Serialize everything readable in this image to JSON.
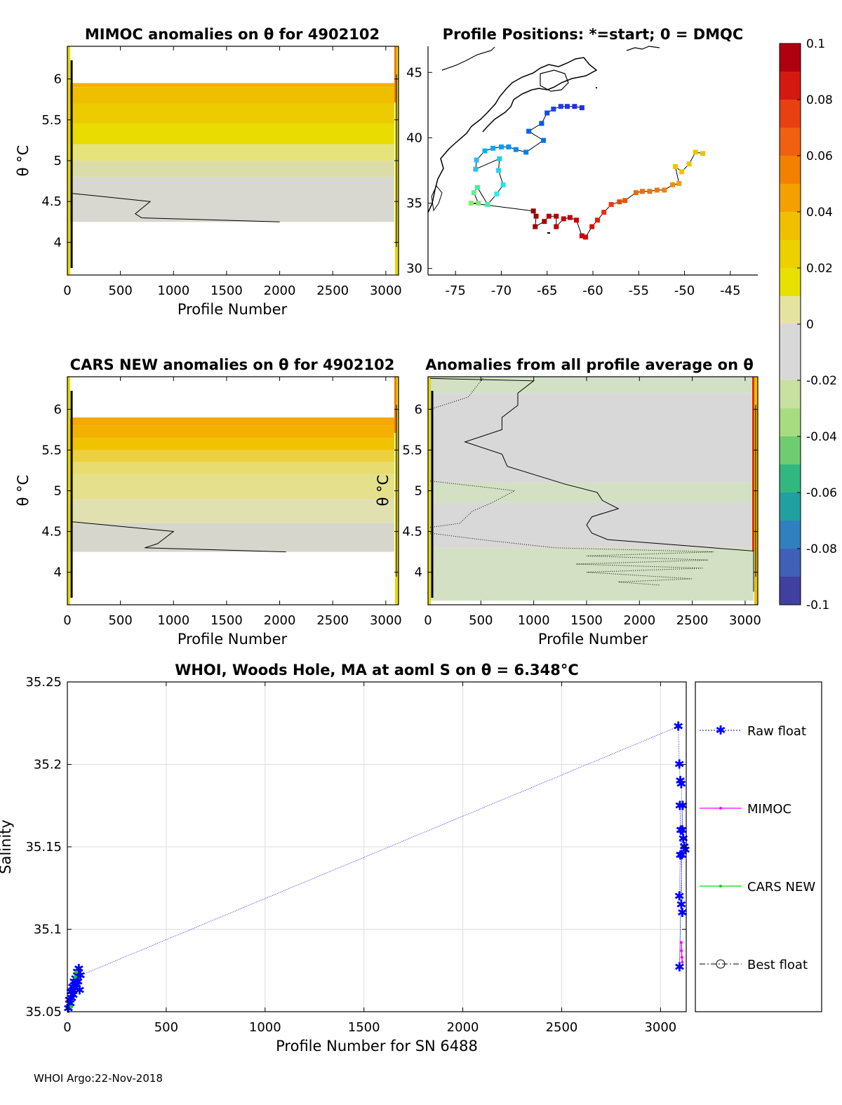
{
  "chart_data": [
    {
      "id": "mimoc",
      "type": "heatmap",
      "title": "MIMOC anomalies on θ  for 4902102",
      "xlabel": "Profile Number",
      "ylabel": "θ °C",
      "xlim": [
        0,
        3120
      ],
      "ylim": [
        3.6,
        6.4
      ],
      "xticks": [
        0,
        500,
        1000,
        1500,
        2000,
        2500,
        3000
      ],
      "yticks": [
        4,
        4.5,
        5,
        5.5,
        6
      ],
      "bands": [
        {
          "from": 5.9,
          "to": 5.95,
          "color": "#efb400"
        },
        {
          "from": 5.7,
          "to": 5.9,
          "color": "#edbf00"
        },
        {
          "from": 5.45,
          "to": 5.7,
          "color": "#eccb00"
        },
        {
          "from": 5.2,
          "to": 5.45,
          "color": "#e8dc00"
        },
        {
          "from": 5.0,
          "to": 5.2,
          "color": "#e6e37a"
        },
        {
          "from": 4.8,
          "to": 5.0,
          "color": "#dcdca8"
        },
        {
          "from": 4.25,
          "to": 4.8,
          "color": "#d8d8d0"
        }
      ],
      "contour": [
        [
          40,
          4.6
        ],
        [
          780,
          4.5
        ],
        [
          640,
          4.35
        ],
        [
          700,
          4.3
        ],
        [
          2000,
          4.25
        ]
      ]
    },
    {
      "id": "positions",
      "type": "scatter",
      "title": "Profile Positions: *=start; 0 = DMQC",
      "xlim": [
        -78,
        -42
      ],
      "ylim": [
        29.5,
        47
      ],
      "xticks": [
        -75,
        -70,
        -65,
        -60,
        -55,
        -50,
        -45
      ],
      "yticks": [
        30,
        35,
        40,
        45
      ],
      "track": [
        {
          "lon": -48.0,
          "lat": 38.8,
          "color": "#eac600"
        },
        {
          "lon": -48.8,
          "lat": 38.9,
          "color": "#eac600"
        },
        {
          "lon": -49.5,
          "lat": 38.0,
          "color": "#eac600"
        },
        {
          "lon": -50.3,
          "lat": 37.4,
          "color": "#f2c100"
        },
        {
          "lon": -51.0,
          "lat": 37.8,
          "color": "#f2c100"
        },
        {
          "lon": -50.6,
          "lat": 36.5,
          "color": "#f2a000"
        },
        {
          "lon": -51.3,
          "lat": 36.4,
          "color": "#f08f00"
        },
        {
          "lon": -52.2,
          "lat": 36.0,
          "color": "#f08000"
        },
        {
          "lon": -53.0,
          "lat": 36.0,
          "color": "#ee7800"
        },
        {
          "lon": -53.8,
          "lat": 35.9,
          "color": "#ee7200"
        },
        {
          "lon": -54.6,
          "lat": 35.9,
          "color": "#ee6c00"
        },
        {
          "lon": -55.3,
          "lat": 35.8,
          "color": "#ee6800"
        },
        {
          "lon": -56.5,
          "lat": 35.2,
          "color": "#ec5200"
        },
        {
          "lon": -57.1,
          "lat": 35.1,
          "color": "#ec4800"
        },
        {
          "lon": -58.0,
          "lat": 34.9,
          "color": "#ea3c00"
        },
        {
          "lon": -58.8,
          "lat": 34.3,
          "color": "#e83000"
        },
        {
          "lon": -59.5,
          "lat": 33.7,
          "color": "#e62000"
        },
        {
          "lon": -60.1,
          "lat": 33.2,
          "color": "#d81000"
        },
        {
          "lon": -60.8,
          "lat": 32.4,
          "color": "#d40800"
        },
        {
          "lon": -61.2,
          "lat": 32.5,
          "color": "#cc0000"
        },
        {
          "lon": -61.8,
          "lat": 33.7,
          "color": "#c80000"
        },
        {
          "lon": -62.5,
          "lat": 33.9,
          "color": "#c00000"
        },
        {
          "lon": -63.2,
          "lat": 33.8,
          "color": "#c00000"
        },
        {
          "lon": -64.0,
          "lat": 33.2,
          "color": "#b80000"
        },
        {
          "lon": -64.0,
          "lat": 34.0,
          "color": "#b40000"
        },
        {
          "lon": -64.8,
          "lat": 34.0,
          "color": "#b40000"
        },
        {
          "lon": -65.3,
          "lat": 33.6,
          "color": "#a80000"
        },
        {
          "lon": -66.3,
          "lat": 33.2,
          "color": "#a00000"
        },
        {
          "lon": -66.2,
          "lat": 34.0,
          "color": "#a00000"
        },
        {
          "lon": -66.5,
          "lat": 34.4,
          "color": "#900000"
        },
        {
          "lon": -73.3,
          "lat": 35.0,
          "color": "#88ee66"
        },
        {
          "lon": -72.5,
          "lat": 35.0,
          "color": "#78e878"
        },
        {
          "lon": -73.0,
          "lat": 35.8,
          "color": "#66ee88"
        },
        {
          "lon": -72.6,
          "lat": 36.2,
          "color": "#44ee99"
        },
        {
          "lon": -71.5,
          "lat": 34.9,
          "color": "#44eeaa"
        },
        {
          "lon": -70.5,
          "lat": 35.7,
          "color": "#22eeee"
        },
        {
          "lon": -69.8,
          "lat": 36.4,
          "color": "#22e0ee"
        },
        {
          "lon": -70.3,
          "lat": 37.5,
          "color": "#22d6ee"
        },
        {
          "lon": -70.2,
          "lat": 38.4,
          "color": "#22ccee"
        },
        {
          "lon": -72.8,
          "lat": 37.6,
          "color": "#22c4f0"
        },
        {
          "lon": -72.7,
          "lat": 38.3,
          "color": "#22bef2"
        },
        {
          "lon": -71.8,
          "lat": 39.0,
          "color": "#00b4f4"
        },
        {
          "lon": -70.9,
          "lat": 39.2,
          "color": "#00aaf4"
        },
        {
          "lon": -70.0,
          "lat": 39.3,
          "color": "#00a0f4"
        },
        {
          "lon": -69.2,
          "lat": 39.3,
          "color": "#0096f4"
        },
        {
          "lon": -68.4,
          "lat": 39.1,
          "color": "#008cf2"
        },
        {
          "lon": -67.3,
          "lat": 38.9,
          "color": "#0080f0"
        },
        {
          "lon": -65.4,
          "lat": 39.8,
          "color": "#0070ee"
        },
        {
          "lon": -67.0,
          "lat": 40.5,
          "color": "#0064ec"
        },
        {
          "lon": -65.6,
          "lat": 41.1,
          "color": "#0058ea"
        },
        {
          "lon": -65.0,
          "lat": 41.9,
          "color": "#104ce8"
        },
        {
          "lon": -64.3,
          "lat": 42.2,
          "color": "#1a44e6"
        },
        {
          "lon": -63.5,
          "lat": 42.4,
          "color": "#203ce4"
        },
        {
          "lon": -62.8,
          "lat": 42.4,
          "color": "#2036e2"
        },
        {
          "lon": -62.0,
          "lat": 42.4,
          "color": "#2030e0"
        },
        {
          "lon": -61.2,
          "lat": 42.3,
          "color": "#2030e0"
        }
      ]
    },
    {
      "id": "cars",
      "type": "heatmap",
      "title": "CARS NEW anomalies on θ for 4902102",
      "xlabel": "Profile Number",
      "ylabel": "θ °C",
      "xlim": [
        0,
        3120
      ],
      "ylim": [
        3.6,
        6.4
      ],
      "xticks": [
        0,
        500,
        1000,
        1500,
        2000,
        2500,
        3000
      ],
      "yticks": [
        4,
        4.5,
        5,
        5.5,
        6
      ],
      "bands": [
        {
          "from": 5.8,
          "to": 5.9,
          "color": "#f4a800"
        },
        {
          "from": 5.65,
          "to": 5.8,
          "color": "#f4b000"
        },
        {
          "from": 5.5,
          "to": 5.65,
          "color": "#f0c200"
        },
        {
          "from": 5.35,
          "to": 5.5,
          "color": "#ecd040"
        },
        {
          "from": 5.2,
          "to": 5.35,
          "color": "#e8dc70"
        },
        {
          "from": 4.9,
          "to": 5.2,
          "color": "#e4e08c"
        },
        {
          "from": 4.6,
          "to": 4.9,
          "color": "#e0e0b0"
        },
        {
          "from": 4.25,
          "to": 4.6,
          "color": "#d6d6cc"
        }
      ],
      "contour": [
        [
          40,
          4.62
        ],
        [
          1000,
          4.5
        ],
        [
          900,
          4.4
        ],
        [
          850,
          4.35
        ],
        [
          730,
          4.3
        ],
        [
          2060,
          4.25
        ]
      ]
    },
    {
      "id": "allavg",
      "type": "heatmap",
      "title": "Anomalies from all profile average on θ",
      "xlabel": "Profile Number",
      "ylabel": "θ °C",
      "xlim": [
        0,
        3120
      ],
      "ylim": [
        3.6,
        6.4
      ],
      "xticks": [
        0,
        500,
        1000,
        1500,
        2000,
        2500,
        3000
      ],
      "yticks": [
        4,
        4.5,
        5,
        5.5,
        6
      ],
      "bands": [
        {
          "from": 6.2,
          "to": 6.4,
          "color": "#d4e0c4"
        },
        {
          "from": 5.1,
          "to": 6.2,
          "color": "#d8d8d8"
        },
        {
          "from": 4.85,
          "to": 5.1,
          "color": "#d4e0c4"
        },
        {
          "from": 4.3,
          "to": 4.85,
          "color": "#d8d8d8"
        },
        {
          "from": 3.65,
          "to": 4.3,
          "color": "#d4e0c4"
        }
      ],
      "contour": [
        [
          20,
          6.38
        ],
        [
          1000,
          6.35
        ],
        [
          850,
          6.2
        ],
        [
          850,
          6.05
        ],
        [
          700,
          5.9
        ],
        [
          700,
          5.75
        ],
        [
          350,
          5.6
        ],
        [
          700,
          5.45
        ],
        [
          750,
          5.3
        ],
        [
          1300,
          5.08
        ],
        [
          1600,
          4.98
        ],
        [
          1650,
          4.88
        ],
        [
          1800,
          4.78
        ],
        [
          1550,
          4.68
        ],
        [
          1500,
          4.58
        ],
        [
          1550,
          4.48
        ],
        [
          1700,
          4.4
        ],
        [
          3080,
          4.26
        ],
        [
          3080,
          3.76
        ]
      ],
      "dotted": [
        [
          20,
          6.0
        ],
        [
          380,
          6.15
        ],
        [
          520,
          6.38
        ]
      ]
    },
    {
      "id": "salinity",
      "type": "line",
      "title": "WHOI, Woods Hole, MA at aoml S on θ = 6.348°C",
      "xlabel": "Profile Number for SN 6488",
      "ylabel": "Salinity",
      "xlim": [
        0,
        3130
      ],
      "ylim": [
        35.05,
        35.25
      ],
      "xticks": [
        0,
        500,
        1000,
        1500,
        2000,
        2500,
        3000
      ],
      "yticks": [
        35.05,
        35.1,
        35.15,
        35.2,
        35.25
      ],
      "series": [
        {
          "name": "Raw float",
          "color": "#0000ff",
          "x": [
            5,
            10,
            15,
            18,
            22,
            26,
            30,
            34,
            38,
            42,
            46,
            50,
            54,
            58,
            62,
            66,
            3090,
            3095,
            3100,
            3105,
            3110,
            3115,
            3120,
            3125,
            3100,
            3095,
            3105,
            3110,
            3098,
            3102,
            3108,
            3096,
            3112
          ],
          "y": [
            35.052,
            35.057,
            35.055,
            35.062,
            35.058,
            35.065,
            35.06,
            35.068,
            35.064,
            35.07,
            35.066,
            35.074,
            35.068,
            35.076,
            35.063,
            35.072,
            35.223,
            35.2,
            35.19,
            35.188,
            35.16,
            35.155,
            35.15,
            35.148,
            35.145,
            35.12,
            35.115,
            35.11,
            35.175,
            35.16,
            35.145,
            35.077,
            35.175
          ]
        },
        {
          "name": "MIMOC",
          "color": "#ff00ff",
          "x": [
            3105,
            3106,
            3108,
            3110
          ],
          "y": [
            35.092,
            35.087,
            35.083,
            35.08
          ]
        },
        {
          "name": "CARS NEW",
          "color": "#00dd00",
          "x": [
            20,
            40,
            45
          ],
          "y": [
            35.053,
            35.071,
            35.074
          ]
        },
        {
          "name": "Best float",
          "color": "#000000",
          "x": [],
          "y": []
        }
      ]
    }
  ],
  "colorbar": {
    "ticks": [
      "0.1",
      "0.08",
      "0.06",
      "0.04",
      "0.02",
      "0",
      "-0.02",
      "-0.04",
      "-0.06",
      "-0.08",
      "-0.1"
    ],
    "colors": [
      "#b00010",
      "#d41a10",
      "#e84010",
      "#f06010",
      "#f48000",
      "#f4a000",
      "#f0c000",
      "#ecd000",
      "#e8e000",
      "#e4e4a0",
      "#d8d8d8",
      "#d8d8d8",
      "#c8e0a0",
      "#a8dc80",
      "#70cc70",
      "#30b880",
      "#20a0a0",
      "#3080c0",
      "#4060b8",
      "#4040a0"
    ]
  },
  "footer": "WHOI Argo:22-Nov-2018"
}
